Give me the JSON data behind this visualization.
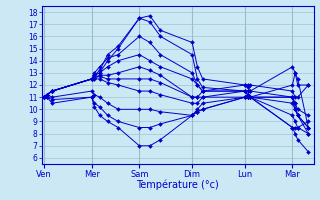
{
  "xlabel": "Température (°c)",
  "bg_color": "#cce8f4",
  "line_color": "#0000cc",
  "grid_color": "#99bbcc",
  "yticks": [
    6,
    7,
    8,
    9,
    10,
    11,
    12,
    13,
    14,
    15,
    16,
    17,
    18
  ],
  "ylim": [
    5.5,
    18.5
  ],
  "day_labels": [
    "Ven",
    "Mer",
    "Sam",
    "Dim",
    "Lun",
    "Mar"
  ],
  "day_positions": [
    0.0,
    0.9,
    1.8,
    2.8,
    3.8,
    4.7
  ],
  "xlim": [
    -0.05,
    5.1
  ],
  "series": [
    {
      "x": [
        0.0,
        0.05,
        0.15,
        0.9,
        0.95,
        1.05,
        1.2,
        1.4,
        1.8,
        2.0,
        2.2,
        2.8,
        2.9,
        3.0,
        3.8,
        3.85,
        3.9,
        4.7,
        4.75,
        4.8,
        5.0
      ],
      "y": [
        11.0,
        11.2,
        11.5,
        12.5,
        12.8,
        13.0,
        14.0,
        15.0,
        17.5,
        17.7,
        16.5,
        15.5,
        13.5,
        12.5,
        12.0,
        11.8,
        11.5,
        11.0,
        10.5,
        10.0,
        9.5
      ]
    },
    {
      "x": [
        0.0,
        0.05,
        0.15,
        0.9,
        0.95,
        1.05,
        1.2,
        1.4,
        1.8,
        2.0,
        2.2,
        2.8,
        2.9,
        3.0,
        3.8,
        3.85,
        3.9,
        4.7,
        4.75,
        4.8,
        5.0
      ],
      "y": [
        11.0,
        11.2,
        11.5,
        12.5,
        12.8,
        13.2,
        14.5,
        15.2,
        17.5,
        17.2,
        16.0,
        14.5,
        12.5,
        11.8,
        11.5,
        11.2,
        11.0,
        11.0,
        10.0,
        9.5,
        8.5
      ]
    },
    {
      "x": [
        0.0,
        0.05,
        0.15,
        0.9,
        0.95,
        1.05,
        1.2,
        1.4,
        1.8,
        2.0,
        2.2,
        2.8,
        2.9,
        3.0,
        3.8,
        3.85,
        3.9,
        4.7,
        4.75,
        4.8,
        5.0
      ],
      "y": [
        11.0,
        11.2,
        11.5,
        12.5,
        13.0,
        13.5,
        14.2,
        14.5,
        16.0,
        15.5,
        14.5,
        13.0,
        12.0,
        11.5,
        11.5,
        11.2,
        11.0,
        11.0,
        10.5,
        9.5,
        8.0
      ]
    },
    {
      "x": [
        0.0,
        0.05,
        0.15,
        0.9,
        0.95,
        1.05,
        1.2,
        1.4,
        1.8,
        2.0,
        2.2,
        2.8,
        2.9,
        3.0,
        3.8,
        3.85,
        3.9,
        4.7,
        4.75,
        4.8,
        5.0
      ],
      "y": [
        11.0,
        11.2,
        11.5,
        12.5,
        12.8,
        13.0,
        13.5,
        14.0,
        14.5,
        14.0,
        13.5,
        12.5,
        12.0,
        11.5,
        11.5,
        11.2,
        11.0,
        12.0,
        13.0,
        12.5,
        8.5
      ]
    },
    {
      "x": [
        0.0,
        0.05,
        0.15,
        0.9,
        0.95,
        1.05,
        1.2,
        1.4,
        1.8,
        2.0,
        2.2,
        2.8,
        2.9,
        3.0,
        3.8,
        3.85,
        3.9,
        4.7,
        4.75,
        4.8,
        5.0
      ],
      "y": [
        11.0,
        11.2,
        11.5,
        12.5,
        12.6,
        12.8,
        12.8,
        13.0,
        13.5,
        13.2,
        12.8,
        11.0,
        11.0,
        11.0,
        11.5,
        11.5,
        11.5,
        13.5,
        13.0,
        12.0,
        12.0
      ]
    },
    {
      "x": [
        0.0,
        0.05,
        0.15,
        0.9,
        0.95,
        1.05,
        1.2,
        1.4,
        1.8,
        2.0,
        2.2,
        2.8,
        2.9,
        3.0,
        3.8,
        3.85,
        3.9,
        4.7,
        4.75,
        4.8,
        5.0
      ],
      "y": [
        11.0,
        11.2,
        11.5,
        12.5,
        12.6,
        12.7,
        12.5,
        12.5,
        12.5,
        12.5,
        12.2,
        11.0,
        11.0,
        11.5,
        12.0,
        12.0,
        12.0,
        11.5,
        11.0,
        11.0,
        12.0
      ]
    },
    {
      "x": [
        0.0,
        0.05,
        0.15,
        0.9,
        0.95,
        1.05,
        1.2,
        1.4,
        1.8,
        2.0,
        2.2,
        2.8,
        2.9,
        3.0,
        3.8,
        3.85,
        3.9,
        4.7,
        4.75,
        4.8,
        5.0
      ],
      "y": [
        11.0,
        11.2,
        11.5,
        12.5,
        12.5,
        12.5,
        12.2,
        12.0,
        11.5,
        11.5,
        11.2,
        10.5,
        10.5,
        11.0,
        11.0,
        11.0,
        11.0,
        10.5,
        10.0,
        9.5,
        8.5
      ]
    },
    {
      "x": [
        0.0,
        0.05,
        0.15,
        0.9,
        0.95,
        1.05,
        1.2,
        1.4,
        1.8,
        2.0,
        2.2,
        2.8,
        2.9,
        3.0,
        3.8,
        3.85,
        3.9,
        4.7,
        4.75,
        4.8,
        5.0
      ],
      "y": [
        11.0,
        11.2,
        11.0,
        11.5,
        11.2,
        11.0,
        10.5,
        10.0,
        10.0,
        10.0,
        9.8,
        9.5,
        9.8,
        10.0,
        11.0,
        11.0,
        11.0,
        9.5,
        9.0,
        8.5,
        8.0
      ]
    },
    {
      "x": [
        0.0,
        0.05,
        0.15,
        0.9,
        0.95,
        1.05,
        1.2,
        1.4,
        1.8,
        2.0,
        2.2,
        2.8,
        2.9,
        3.0,
        3.8,
        3.85,
        3.9,
        4.7,
        4.75,
        4.8,
        5.0
      ],
      "y": [
        11.0,
        11.0,
        10.8,
        11.0,
        10.5,
        10.2,
        9.5,
        9.0,
        8.5,
        8.5,
        8.8,
        9.5,
        9.8,
        10.0,
        11.0,
        11.0,
        11.0,
        8.5,
        8.5,
        8.5,
        9.0
      ]
    },
    {
      "x": [
        0.0,
        0.05,
        0.15,
        0.9,
        0.95,
        1.05,
        1.2,
        1.4,
        1.8,
        2.0,
        2.2,
        2.8,
        2.9,
        3.0,
        3.8,
        3.85,
        3.9,
        4.7,
        4.75,
        4.8,
        5.0
      ],
      "y": [
        11.0,
        11.0,
        10.5,
        11.0,
        10.2,
        9.5,
        9.0,
        8.5,
        7.0,
        7.0,
        7.5,
        9.5,
        10.0,
        10.5,
        11.0,
        11.0,
        11.0,
        8.5,
        8.0,
        7.5,
        6.5
      ]
    }
  ]
}
